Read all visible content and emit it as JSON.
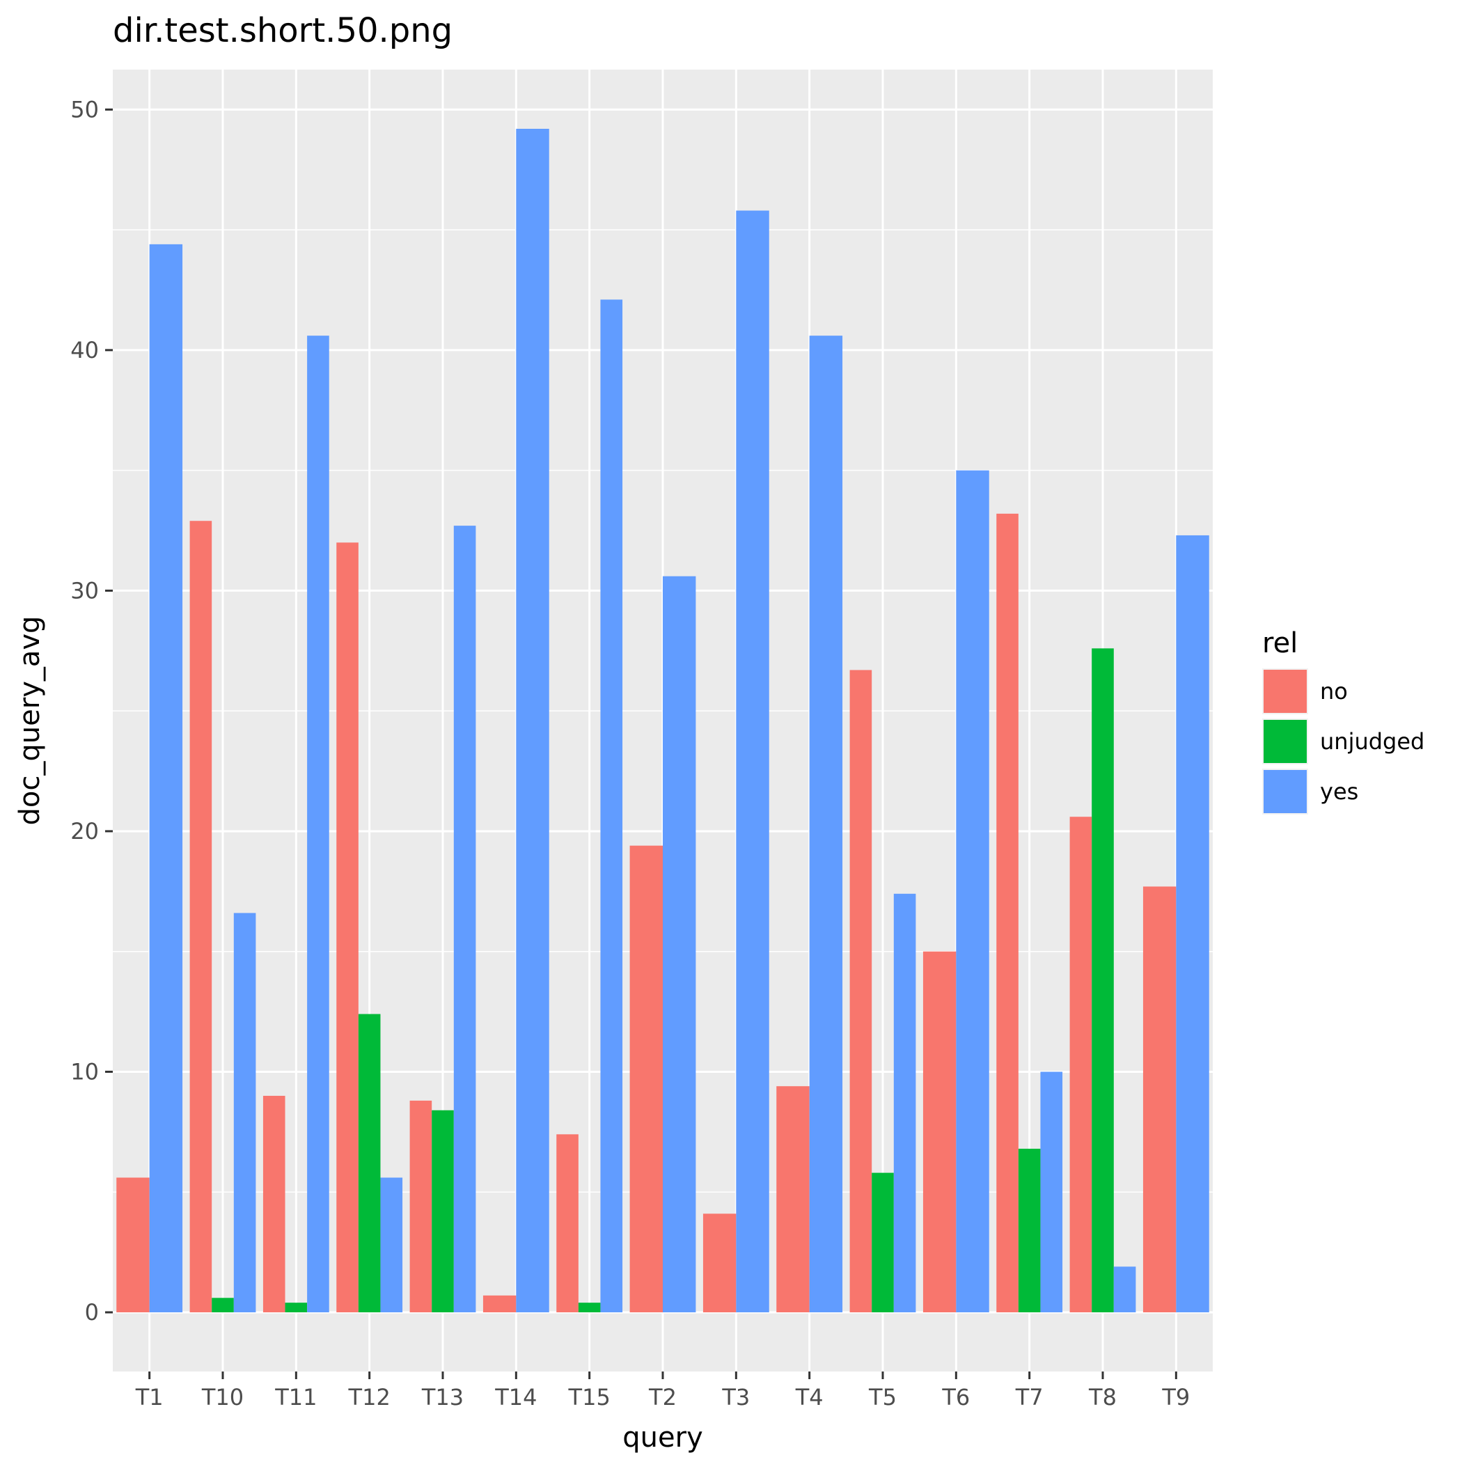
{
  "chart_data": {
    "type": "bar",
    "title": "dir.test.short.50.png",
    "xlabel": "query",
    "ylabel": "doc_query_avg",
    "categories": [
      "T1",
      "T10",
      "T11",
      "T12",
      "T13",
      "T14",
      "T15",
      "T2",
      "T3",
      "T4",
      "T5",
      "T6",
      "T7",
      "T8",
      "T9"
    ],
    "series": [
      {
        "name": "no",
        "color": "#F8766D",
        "values": [
          5.6,
          32.9,
          9.0,
          32.0,
          8.8,
          0.7,
          7.4,
          19.4,
          4.1,
          9.4,
          26.7,
          15.0,
          33.2,
          20.6,
          17.7
        ]
      },
      {
        "name": "unjudged",
        "color": "#00BA38",
        "values": [
          null,
          0.6,
          0.4,
          12.4,
          8.4,
          null,
          0.4,
          null,
          null,
          null,
          5.8,
          null,
          6.8,
          27.6,
          null
        ]
      },
      {
        "name": "yes",
        "color": "#619CFF",
        "values": [
          44.4,
          16.6,
          40.6,
          5.6,
          32.7,
          49.2,
          42.1,
          30.6,
          45.8,
          40.6,
          17.4,
          35.0,
          10.0,
          1.9,
          32.3
        ]
      }
    ],
    "ylim": [
      -2.46,
      51.66
    ],
    "yticks": [
      0,
      10,
      20,
      30,
      40,
      50
    ],
    "grid": true,
    "legend": {
      "title": "rel",
      "position": "right"
    },
    "panel_background": "#EBEBEB"
  }
}
